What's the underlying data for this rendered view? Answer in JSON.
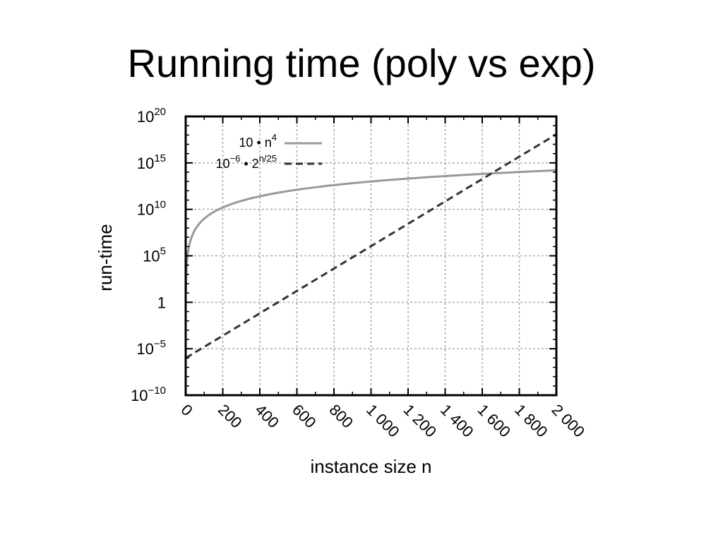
{
  "slide": {
    "title": "Running time (poly vs exp)"
  },
  "chart_data": {
    "type": "line",
    "xlabel": "instance size n",
    "ylabel": "run-time",
    "xlim": [
      0,
      2000
    ],
    "ylim_log10": [
      -10,
      20
    ],
    "y_scale": "log",
    "grid": true,
    "legend_position": "top-left",
    "x_ticks": [
      {
        "value": 0,
        "label": "0"
      },
      {
        "value": 200,
        "label": "200"
      },
      {
        "value": 400,
        "label": "400"
      },
      {
        "value": 600,
        "label": "600"
      },
      {
        "value": 800,
        "label": "800"
      },
      {
        "value": 1000,
        "label": "1 000"
      },
      {
        "value": 1200,
        "label": "1 200"
      },
      {
        "value": 1400,
        "label": "1 400"
      },
      {
        "value": 1600,
        "label": "1 600"
      },
      {
        "value": 1800,
        "label": "1 800"
      },
      {
        "value": 2000,
        "label": "2 000"
      }
    ],
    "y_ticks": [
      {
        "exp": 20,
        "base": "10",
        "sup": "20"
      },
      {
        "exp": 15,
        "base": "10",
        "sup": "15"
      },
      {
        "exp": 10,
        "base": "10",
        "sup": "10"
      },
      {
        "exp": 5,
        "base": "10",
        "sup": "5"
      },
      {
        "exp": 0,
        "base": "1",
        "sup": ""
      },
      {
        "exp": -5,
        "base": "10",
        "sup": "−5"
      },
      {
        "exp": -10,
        "base": "10",
        "sup": "−10"
      }
    ],
    "series": [
      {
        "name": "10 • n^4",
        "legend_parts": {
          "a": "10 • n",
          "sup": "4"
        },
        "formula": "poly",
        "color": "#999999",
        "dash": "solid",
        "x": [
          1,
          5,
          10,
          25,
          50,
          100,
          200,
          300,
          400,
          600,
          800,
          1000,
          1200,
          1400,
          1600,
          1800,
          2000
        ],
        "y_log10": [
          1.0,
          3.8,
          5.0,
          6.59,
          7.8,
          9.0,
          10.2,
          10.91,
          11.41,
          12.11,
          12.61,
          13.0,
          13.32,
          13.59,
          13.82,
          14.02,
          14.2
        ]
      },
      {
        "name": "10^-6 • 2^(n/25)",
        "legend_parts": {
          "a": "10",
          "sup_a": "−6",
          "b": " • 2",
          "sup_b": "n/25"
        },
        "formula": "exp",
        "color": "#333333",
        "dash": "dashed",
        "x": [
          0,
          2000
        ],
        "y_log10": [
          -6.0,
          18.08
        ]
      }
    ]
  }
}
